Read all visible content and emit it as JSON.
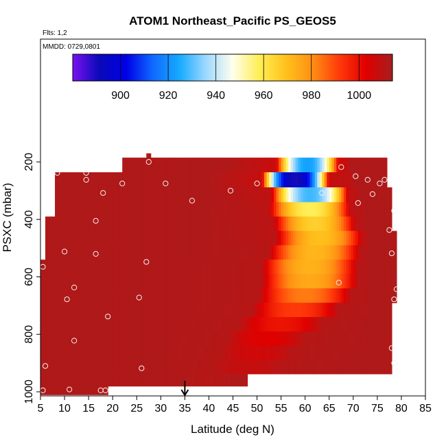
{
  "chart_data": {
    "type": "heatmap",
    "title": "ATOM1 Northeast_Pacific PS_GEOS5",
    "flights_label": "Flts: 1,2",
    "date_label": "MMDD: 0729,0801",
    "xlabel": "Latitude (deg N)",
    "ylabel": "PSXC (mbar)",
    "xlim": [
      5,
      85
    ],
    "ylim": [
      1000,
      100
    ],
    "x_ticks": [
      "5",
      "10",
      "15",
      "20",
      "25",
      "30",
      "35",
      "40",
      "45",
      "50",
      "55",
      "60",
      "65",
      "70",
      "75",
      "80",
      "85"
    ],
    "y_ticks": [
      "200",
      "400",
      "600",
      "800",
      "1000"
    ],
    "colorbar": {
      "range": [
        880,
        1014
      ],
      "ticks": [
        "900",
        "920",
        "940",
        "960",
        "980",
        "1000"
      ],
      "colors": [
        "#7a11f0",
        "#0a0ab8",
        "#0000e6",
        "#1168ff",
        "#16aaff",
        "#9ed8ff",
        "#ffffee",
        "#ffee55",
        "#ffc21c",
        "#ff8f14",
        "#ff3a0a",
        "#e00000",
        "#a61f1f"
      ]
    },
    "marker": {
      "x": 35,
      "label": "↓"
    },
    "pressure_bands": [
      {
        "p": 210,
        "xs": 22,
        "xe": 77,
        "cold_center": 60.5,
        "cold_width": 13,
        "hot_edge": 69,
        "tmin": 923,
        "tfloor": 1007,
        "tedge": 1012
      },
      {
        "p": 262,
        "xs": 8,
        "xe": 77,
        "cold_center": 58.0,
        "cold_width": 14,
        "hot_edge": 70,
        "tmin": 890,
        "tfloor": 1008,
        "tedge": 1012
      },
      {
        "p": 315,
        "xs": 8,
        "xe": 78,
        "cold_center": 61.0,
        "cold_width": 16,
        "hot_edge": 71,
        "tmin": 928,
        "tfloor": 1009,
        "tedge": 1012
      },
      {
        "p": 365,
        "xs": 8,
        "xe": 78,
        "cold_center": 61.0,
        "cold_width": 17,
        "hot_edge": 72,
        "tmin": 958,
        "tfloor": 1010,
        "tedge": 1012
      },
      {
        "p": 415,
        "xs": 6,
        "xe": 78,
        "cold_center": 62.0,
        "cold_width": 17,
        "hot_edge": 72,
        "tmin": 966,
        "tfloor": 1010,
        "tedge": 1012
      },
      {
        "p": 465,
        "xs": 6,
        "xe": 79,
        "cold_center": 63.0,
        "cold_width": 18,
        "hot_edge": 73,
        "tmin": 970,
        "tfloor": 1010,
        "tedge": 1012
      },
      {
        "p": 515,
        "xs": 6,
        "xe": 79,
        "cold_center": 62.0,
        "cold_width": 19,
        "hot_edge": 73,
        "tmin": 972,
        "tfloor": 1011,
        "tedge": 1012
      },
      {
        "p": 565,
        "xs": 5,
        "xe": 79,
        "cold_center": 61.0,
        "cold_width": 20,
        "hot_edge": 73,
        "tmin": 973,
        "tfloor": 1011,
        "tedge": 1012
      },
      {
        "p": 615,
        "xs": 5,
        "xe": 79,
        "cold_center": 61.0,
        "cold_width": 20,
        "hot_edge": 73,
        "tmin": 975,
        "tfloor": 1011,
        "tedge": 1012
      },
      {
        "p": 665,
        "xs": 5,
        "xe": 79,
        "cold_center": 60.0,
        "cold_width": 19,
        "hot_edge": 73,
        "tmin": 983,
        "tfloor": 1011,
        "tedge": 1012
      },
      {
        "p": 715,
        "xs": 5,
        "xe": 78,
        "cold_center": 58.0,
        "cold_width": 18,
        "hot_edge": 73,
        "tmin": 992,
        "tfloor": 1011,
        "tedge": 1012
      },
      {
        "p": 765,
        "xs": 5,
        "xe": 78,
        "cold_center": 55.0,
        "cold_width": 17,
        "hot_edge": 72,
        "tmin": 999,
        "tfloor": 1011,
        "tedge": 1012
      },
      {
        "p": 815,
        "xs": 5,
        "xe": 78,
        "cold_center": 52.0,
        "cold_width": 16,
        "hot_edge": 72,
        "tmin": 1003,
        "tfloor": 1011,
        "tedge": 1012
      },
      {
        "p": 865,
        "xs": 5,
        "xe": 78,
        "cold_center": 50.0,
        "cold_width": 15,
        "hot_edge": 72,
        "tmin": 1006,
        "tfloor": 1011,
        "tedge": 1012
      },
      {
        "p": 915,
        "xs": 5,
        "xe": 78,
        "cold_center": 48.0,
        "cold_width": 14,
        "hot_edge": 72,
        "tmin": 1008,
        "tfloor": 1011,
        "tedge": 1012
      },
      {
        "p": 960,
        "xs": 5,
        "xe": 48,
        "cold_center": 40.0,
        "cold_width": 10,
        "hot_edge": 48,
        "tmin": 1011,
        "tfloor": 1012,
        "tedge": 1012
      },
      {
        "p": 1000,
        "xs": 5,
        "xe": 19,
        "cold_center": 10.0,
        "cold_width": 5,
        "hot_edge": 19,
        "tmin": 1012,
        "tfloor": 1012,
        "tedge": 1012
      }
    ],
    "spike": {
      "x": [
        27,
        28
      ],
      "p": [
        170,
        210
      ],
      "value": 1012
    },
    "points": [
      {
        "x": 8.5,
        "y": 238
      },
      {
        "x": 14.5,
        "y": 238
      },
      {
        "x": 14.5,
        "y": 262
      },
      {
        "x": 22,
        "y": 275
      },
      {
        "x": 18,
        "y": 308
      },
      {
        "x": 27.5,
        "y": 200
      },
      {
        "x": 31,
        "y": 275
      },
      {
        "x": 36.5,
        "y": 335
      },
      {
        "x": 44.5,
        "y": 300
      },
      {
        "x": 50,
        "y": 275
      },
      {
        "x": 63.5,
        "y": 308
      },
      {
        "x": 67.5,
        "y": 218
      },
      {
        "x": 70.5,
        "y": 250
      },
      {
        "x": 71,
        "y": 343
      },
      {
        "x": 73,
        "y": 262
      },
      {
        "x": 74,
        "y": 312
      },
      {
        "x": 75.5,
        "y": 275
      },
      {
        "x": 76.5,
        "y": 262
      },
      {
        "x": 77.5,
        "y": 437
      },
      {
        "x": 78,
        "y": 518
      },
      {
        "x": 78.5,
        "y": 370
      },
      {
        "x": 16.5,
        "y": 405
      },
      {
        "x": 10,
        "y": 512
      },
      {
        "x": 16.5,
        "y": 520
      },
      {
        "x": 27,
        "y": 548
      },
      {
        "x": 5.5,
        "y": 565
      },
      {
        "x": 67,
        "y": 620
      },
      {
        "x": 12,
        "y": 637
      },
      {
        "x": 10.5,
        "y": 678
      },
      {
        "x": 25.5,
        "y": 672
      },
      {
        "x": 19,
        "y": 738
      },
      {
        "x": 79,
        "y": 643
      },
      {
        "x": 78.5,
        "y": 678
      },
      {
        "x": 12,
        "y": 822
      },
      {
        "x": 78,
        "y": 848
      },
      {
        "x": 78.5,
        "y": 900
      },
      {
        "x": 6,
        "y": 910
      },
      {
        "x": 26,
        "y": 918
      },
      {
        "x": 11,
        "y": 992
      },
      {
        "x": 17.5,
        "y": 995
      },
      {
        "x": 18.5,
        "y": 995
      },
      {
        "x": 5.5,
        "y": 995
      }
    ]
  }
}
